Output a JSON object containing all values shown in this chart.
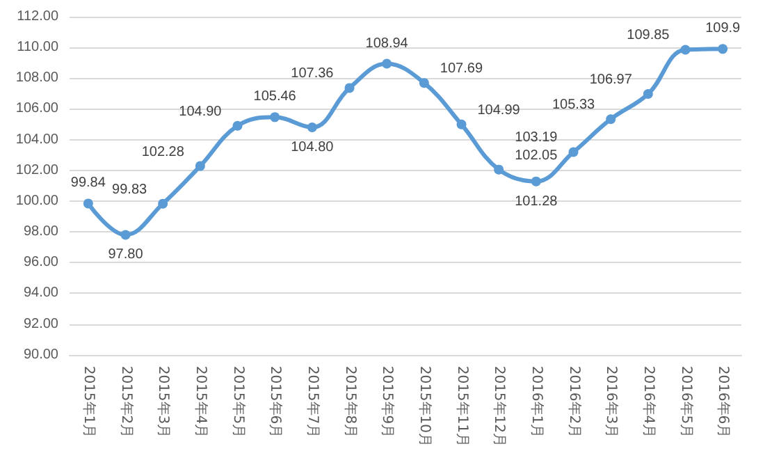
{
  "chart_data": {
    "type": "line",
    "categories": [
      "2015年1月",
      "2015年2月",
      "2015年3月",
      "2015年4月",
      "2015年5月",
      "2015年6月",
      "2015年7月",
      "2015年8月",
      "2015年9月",
      "2015年10月",
      "2015年11月",
      "2015年12月",
      "2016年1月",
      "2016年2月",
      "2016年3月",
      "2016年4月",
      "2016年5月",
      "2016年6月"
    ],
    "series": [
      {
        "color": "#5b9bd5",
        "values": [
          99.84,
          97.8,
          99.83,
          102.28,
          104.9,
          105.46,
          104.8,
          107.36,
          108.94,
          107.69,
          104.99,
          102.05,
          101.28,
          103.19,
          105.33,
          106.97,
          109.85,
          109.9
        ],
        "value_labels": [
          "99.84",
          "97.80",
          "99.83",
          "102.28",
          "104.90",
          "105.46",
          "104.80",
          "107.36",
          "108.94",
          "107.69",
          "104.99",
          "102.05",
          "101.28",
          "103.19",
          "105.33",
          "106.97",
          "109.85",
          "109.9"
        ]
      }
    ],
    "ylim": [
      90,
      112
    ],
    "yticks": [
      {
        "value": 90,
        "label": "90.00"
      },
      {
        "value": 92,
        "label": "92.00"
      },
      {
        "value": 94,
        "label": "94.00"
      },
      {
        "value": 96,
        "label": "96.00"
      },
      {
        "value": 98,
        "label": "98.00"
      },
      {
        "value": 100,
        "label": "100.00"
      },
      {
        "value": 102,
        "label": "102.00"
      },
      {
        "value": 104,
        "label": "104.00"
      },
      {
        "value": 106,
        "label": "106.00"
      },
      {
        "value": 108,
        "label": "108.00"
      },
      {
        "value": 110,
        "label": "110.00"
      },
      {
        "value": 112,
        "label": "112.00"
      }
    ],
    "grid": "y",
    "marker": "circle",
    "line_style": "solid"
  }
}
